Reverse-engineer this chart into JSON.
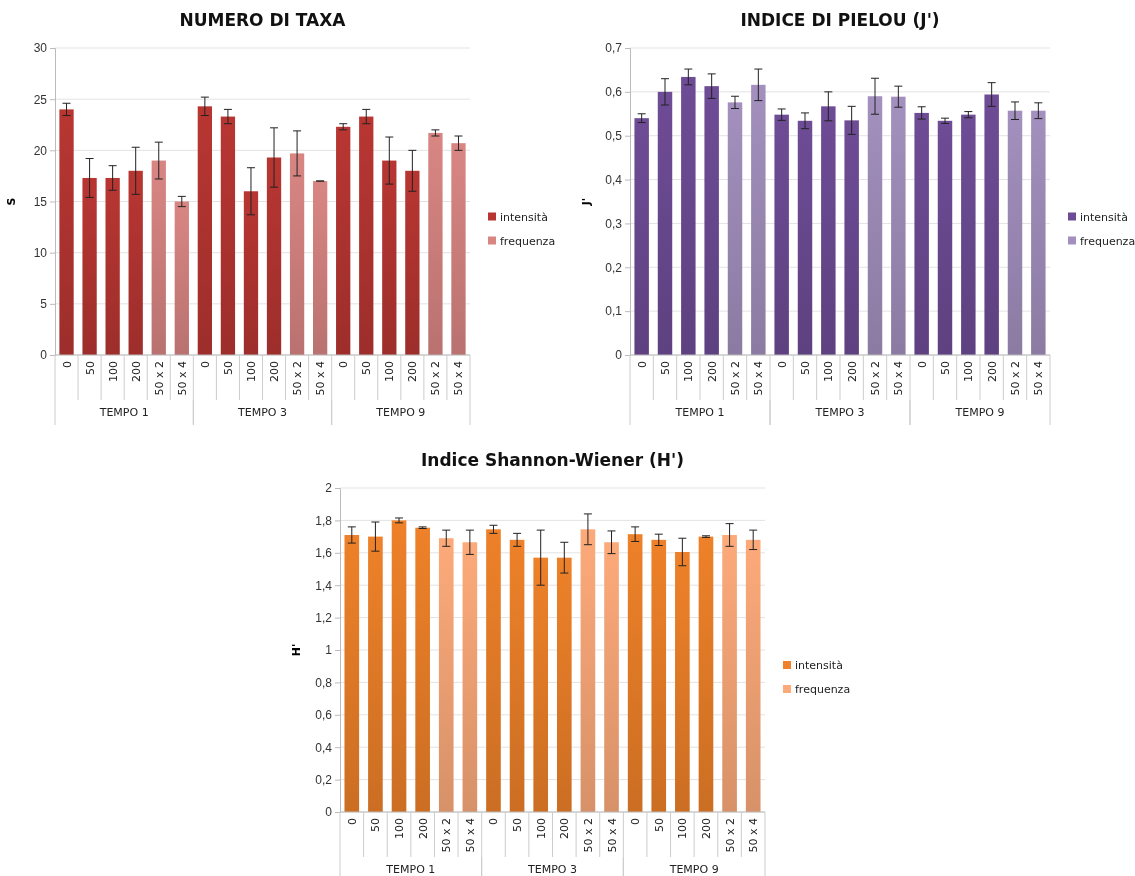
{
  "chart_data": [
    {
      "type": "bar",
      "title": "NUMERO DI TAXA",
      "ylabel": "S",
      "categories": [
        "0",
        "50",
        "100",
        "200",
        "50 x 2",
        "50 x 4",
        "0",
        "50",
        "100",
        "200",
        "50 x 2",
        "50 x 4",
        "0",
        "50",
        "100",
        "200",
        "50 x 2",
        "50 x 4"
      ],
      "series": [
        {
          "name": "intensità",
          "color": "#b83632",
          "values": [
            24,
            17.3,
            17.3,
            18,
            null,
            null,
            24.3,
            23.3,
            16,
            19.3,
            null,
            null,
            22.3,
            23.3,
            19,
            18,
            null,
            null
          ],
          "errors": [
            0.6,
            1.9,
            1.2,
            2.3,
            null,
            null,
            0.9,
            0.7,
            2.3,
            2.9,
            null,
            null,
            0.3,
            0.7,
            2.3,
            2,
            null,
            null
          ]
        },
        {
          "name": "frequenza",
          "color": "#d98683",
          "values": [
            null,
            null,
            null,
            null,
            19,
            15,
            null,
            null,
            null,
            null,
            19.7,
            17,
            null,
            null,
            null,
            null,
            21.7,
            20.7
          ],
          "errors": [
            null,
            null,
            null,
            null,
            1.8,
            0.5,
            null,
            null,
            null,
            null,
            2.2,
            0,
            null,
            null,
            null,
            null,
            0.3,
            0.7
          ]
        }
      ],
      "ylim": [
        0,
        30
      ],
      "yticks": [
        0,
        5,
        10,
        15,
        20,
        25,
        30
      ],
      "grid": "y",
      "legend": "right",
      "annotations": [
        "TEMPO 1",
        "TEMPO 3",
        "TEMPO 9"
      ]
    },
    {
      "type": "bar",
      "title": "INDICE DI PIELOU (J')",
      "ylabel": "J'",
      "categories": [
        "0",
        "50",
        "100",
        "200",
        "50 x 2",
        "50 x 4",
        "0",
        "50",
        "100",
        "200",
        "50 x 2",
        "50 x 4",
        "0",
        "50",
        "100",
        "200",
        "50 x 2",
        "50 x 4"
      ],
      "series": [
        {
          "name": "intensità",
          "color": "#6e4c96",
          "values": [
            0.54,
            0.6,
            0.634,
            0.613,
            null,
            null,
            0.548,
            0.534,
            0.567,
            0.535,
            null,
            null,
            0.552,
            0.534,
            0.548,
            0.594,
            null,
            null
          ],
          "errors": [
            0.01,
            0.03,
            0.018,
            0.028,
            null,
            null,
            0.013,
            0.018,
            0.033,
            0.032,
            null,
            null,
            0.014,
            0.006,
            0.007,
            0.027,
            null,
            null
          ]
        },
        {
          "name": "frequenza",
          "color": "#a390be",
          "values": [
            null,
            null,
            null,
            null,
            0.576,
            0.616,
            null,
            null,
            null,
            null,
            0.59,
            0.589,
            null,
            null,
            null,
            null,
            0.557,
            0.557
          ],
          "errors": [
            null,
            null,
            null,
            null,
            0.014,
            0.036,
            null,
            null,
            null,
            null,
            0.041,
            0.024,
            null,
            null,
            null,
            null,
            0.02,
            0.018
          ]
        }
      ],
      "ylim": [
        0,
        0.7
      ],
      "yticks": [
        0,
        {
          "value": 0.1,
          "label": "0,1"
        },
        {
          "value": 0.2,
          "label": "0,2"
        },
        {
          "value": 0.3,
          "label": "0,3"
        },
        {
          "value": 0.4,
          "label": "0,4"
        },
        {
          "value": 0.5,
          "label": "0,5"
        },
        {
          "value": 0.6,
          "label": "0,6"
        },
        {
          "value": 0.7,
          "label": "0,7"
        }
      ],
      "grid": "y",
      "legend": "right",
      "annotations": [
        "TEMPO 1",
        "TEMPO 3",
        "TEMPO 9"
      ]
    },
    {
      "type": "bar",
      "title": "Indice Shannon-Wiener  (H')",
      "ylabel": "H'",
      "categories": [
        "0",
        "50",
        "100",
        "200",
        "50 x 2",
        "50 x 4",
        "0",
        "50",
        "100",
        "200",
        "50 x 2",
        "50 x 4",
        "0",
        "50",
        "100",
        "200",
        "50 x 2",
        "50 x 4"
      ],
      "series": [
        {
          "name": "intensità",
          "color": "#ee8129",
          "values": [
            1.71,
            1.7,
            1.8,
            1.755,
            null,
            null,
            1.745,
            1.68,
            1.57,
            1.57,
            null,
            null,
            1.715,
            1.68,
            1.605,
            1.7,
            null,
            null
          ],
          "errors": [
            0.05,
            0.09,
            0.015,
            0.005,
            null,
            null,
            0.025,
            0.04,
            0.17,
            0.095,
            null,
            null,
            0.045,
            0.035,
            0.085,
            0.005,
            null,
            null
          ]
        },
        {
          "name": "frequenza",
          "color": "#fdaa7a",
          "values": [
            null,
            null,
            null,
            null,
            1.69,
            1.665,
            null,
            null,
            null,
            null,
            1.745,
            1.665,
            null,
            null,
            null,
            null,
            1.71,
            1.68
          ],
          "errors": [
            null,
            null,
            null,
            null,
            0.05,
            0.075,
            null,
            null,
            null,
            null,
            0.095,
            0.07,
            null,
            null,
            null,
            null,
            0.07,
            0.06
          ]
        }
      ],
      "ylim": [
        0,
        2
      ],
      "yticks": [
        0,
        {
          "value": 0.2,
          "label": "0,2"
        },
        {
          "value": 0.4,
          "label": "0,4"
        },
        {
          "value": 0.6,
          "label": "0,6"
        },
        {
          "value": 0.8,
          "label": "0,8"
        },
        1,
        {
          "value": 1.2,
          "label": "1,2"
        },
        {
          "value": 1.4,
          "label": "1,4"
        },
        {
          "value": 1.6,
          "label": "1,6"
        },
        {
          "value": 1.8,
          "label": "1,8"
        },
        2
      ],
      "grid": "y",
      "legend": "right",
      "annotations": [
        "TEMPO 1",
        "TEMPO 3",
        "TEMPO 9"
      ]
    }
  ]
}
